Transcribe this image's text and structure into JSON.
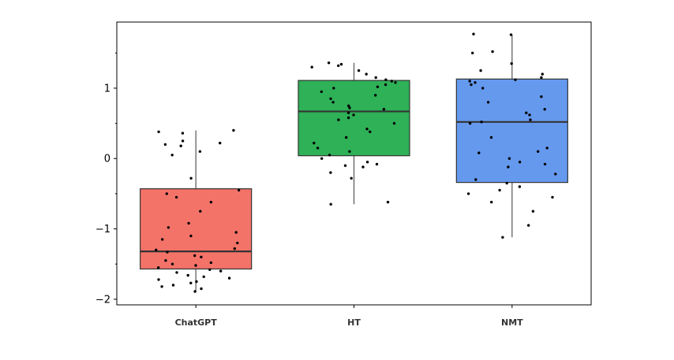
{
  "chart_data": {
    "type": "box",
    "title": "",
    "xlabel": "",
    "ylabel": "",
    "ylim": [
      -2.08,
      1.94
    ],
    "yticks": [
      -2,
      -1,
      0,
      1
    ],
    "ytick_labels": [
      "−2",
      "−1",
      "0",
      "1"
    ],
    "categories": [
      "ChatGPT",
      "HT",
      "NMT"
    ],
    "series": [
      {
        "name": "ChatGPT",
        "color": "#f47369",
        "box": {
          "whisker_low": -1.88,
          "q1": -1.57,
          "median": -1.32,
          "q3": -0.43,
          "whisker_high": 0.4
        },
        "points": [
          -1.89,
          -1.85,
          -1.82,
          -1.8,
          -1.77,
          -1.75,
          -1.72,
          -1.7,
          -1.68,
          -1.66,
          -1.62,
          -1.6,
          -1.58,
          -1.55,
          -1.52,
          -1.5,
          -1.48,
          -1.45,
          -1.4,
          -1.38,
          -1.33,
          -1.3,
          -1.28,
          -1.2,
          -1.15,
          -1.1,
          -1.05,
          -0.98,
          -0.92,
          -0.75,
          -0.62,
          -0.55,
          -0.5,
          -0.45,
          -0.28,
          0.05,
          0.1,
          0.18,
          0.2,
          0.22,
          0.25,
          0.36,
          0.38,
          0.4
        ]
      },
      {
        "name": "HT",
        "color": "#2eb157",
        "box": {
          "whisker_low": -0.65,
          "q1": 0.04,
          "median": 0.67,
          "q3": 1.11,
          "whisker_high": 1.36
        },
        "points": [
          -0.65,
          -0.62,
          -0.28,
          -0.2,
          -0.12,
          -0.1,
          -0.08,
          -0.05,
          0.0,
          0.05,
          0.1,
          0.15,
          0.22,
          0.3,
          0.38,
          0.42,
          0.5,
          0.55,
          0.58,
          0.62,
          0.65,
          0.7,
          0.72,
          0.75,
          0.8,
          0.85,
          0.9,
          0.95,
          1.0,
          1.02,
          1.05,
          1.08,
          1.1,
          1.12,
          1.15,
          1.2,
          1.25,
          1.3,
          1.32,
          1.34,
          1.36
        ]
      },
      {
        "name": "NMT",
        "color": "#6599ee",
        "box": {
          "whisker_low": -1.12,
          "q1": -0.34,
          "median": 0.52,
          "q3": 1.13,
          "whisker_high": 1.76
        },
        "points": [
          -1.12,
          -0.95,
          -0.75,
          -0.62,
          -0.55,
          -0.5,
          -0.45,
          -0.4,
          -0.35,
          -0.3,
          -0.22,
          -0.12,
          -0.08,
          -0.05,
          0.0,
          0.08,
          0.1,
          0.15,
          0.3,
          0.5,
          0.52,
          0.55,
          0.62,
          0.65,
          0.7,
          0.8,
          0.88,
          1.0,
          1.05,
          1.08,
          1.1,
          1.12,
          1.15,
          1.2,
          1.25,
          1.35,
          1.5,
          1.52,
          1.76,
          1.77
        ]
      }
    ]
  }
}
